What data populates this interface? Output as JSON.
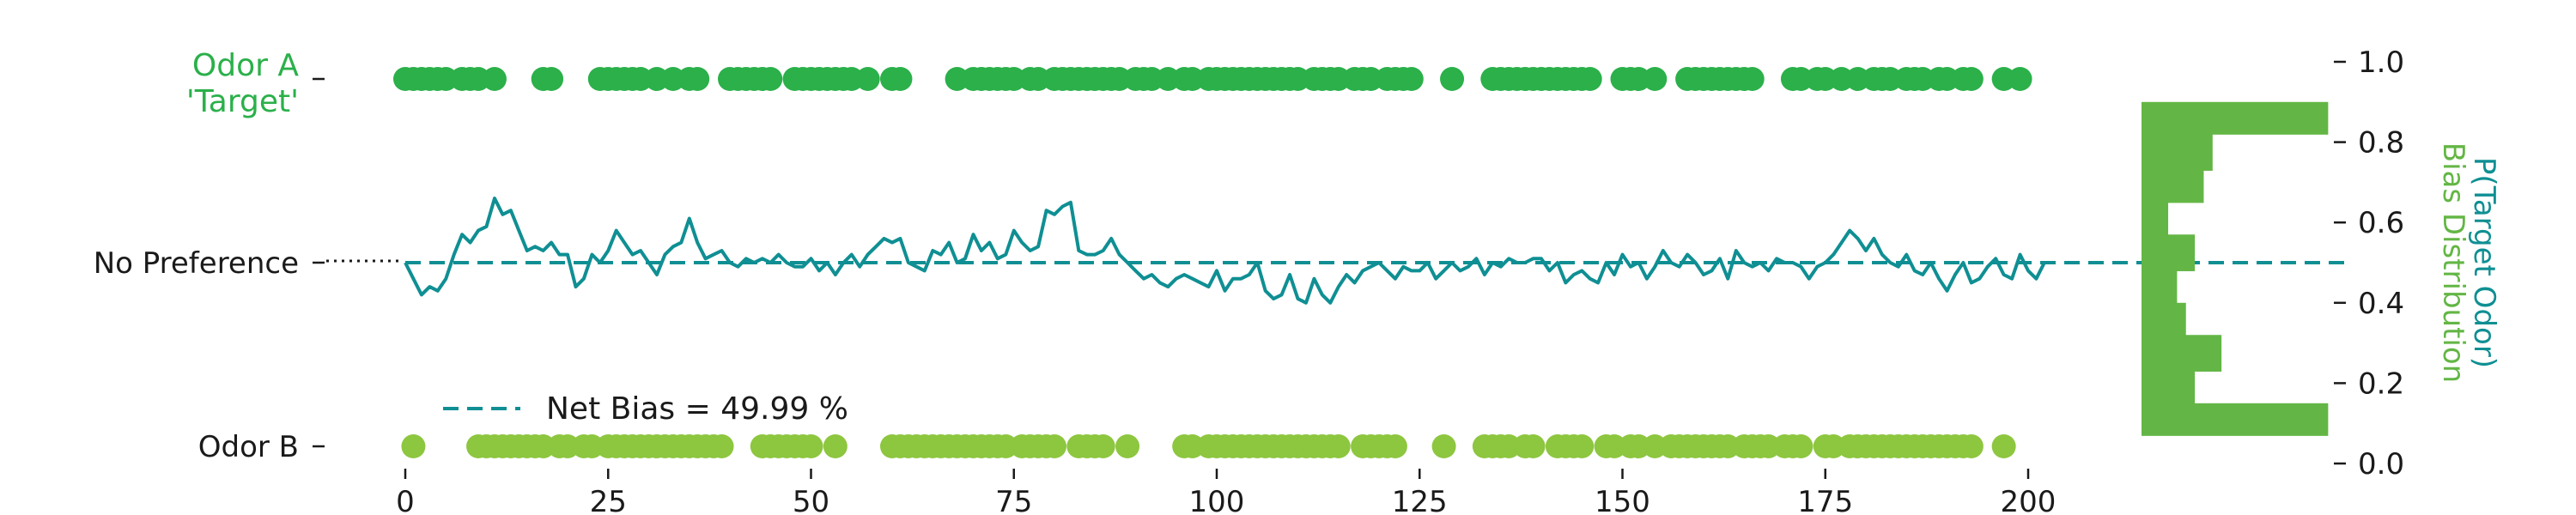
{
  "colors": {
    "odor_a": "#2bb04a",
    "odor_b": "#8dc63f",
    "bias_line": "#0f8f93",
    "histogram": "#63b645",
    "text": "#1a1a1a"
  },
  "labels": {
    "odor_a_line1": "Odor A",
    "odor_a_line2": "'Target'",
    "no_preference": "No Preference",
    "odor_b": "Odor B",
    "legend": "Net Bias = 49.99 %",
    "right_axis_title_1": "P(Target Odor)",
    "right_axis_title_2": "Bias Distribution"
  },
  "chart_data": [
    {
      "type": "scatter",
      "xlim": [
        0,
        200
      ],
      "xticks": [
        "0",
        "25",
        "50",
        "75",
        "100",
        "125",
        "150",
        "175",
        "200"
      ],
      "yticks": [
        "Odor A\n'Target'",
        "No Preference",
        "Odor B"
      ],
      "net_bias_percent": 49.99,
      "no_preference_level": 0.5,
      "series": [
        {
          "name": "Odor A 'Target'",
          "x": [
            0,
            1,
            2,
            3,
            4,
            5,
            7,
            8,
            9,
            11,
            17,
            18,
            24,
            25,
            26,
            27,
            28,
            29,
            31,
            33,
            35,
            36,
            40,
            41,
            42,
            43,
            44,
            45,
            48,
            49,
            50,
            51,
            52,
            53,
            54,
            55,
            57,
            60,
            61,
            68,
            70,
            71,
            72,
            73,
            74,
            75,
            77,
            78,
            80,
            81,
            82,
            83,
            84,
            85,
            86,
            87,
            88,
            90,
            91,
            92,
            94,
            96,
            97,
            99,
            100,
            101,
            102,
            103,
            104,
            105,
            106,
            107,
            108,
            109,
            110,
            112,
            113,
            114,
            115,
            117,
            118,
            119,
            121,
            122,
            123,
            124,
            129,
            134,
            135,
            136,
            137,
            138,
            139,
            140,
            141,
            142,
            143,
            144,
            145,
            146,
            150,
            151,
            152,
            154,
            158,
            159,
            160,
            161,
            162,
            163,
            164,
            165,
            166,
            171,
            172,
            174,
            175,
            177,
            179,
            181,
            182,
            183,
            185,
            186,
            187,
            189,
            190,
            192,
            193,
            197,
            199
          ]
        },
        {
          "name": "Odor B",
          "x": [
            1,
            9,
            10,
            11,
            12,
            13,
            14,
            15,
            16,
            17,
            19,
            20,
            22,
            23,
            25,
            26,
            27,
            28,
            29,
            30,
            31,
            32,
            33,
            34,
            35,
            36,
            37,
            38,
            39,
            44,
            45,
            46,
            47,
            48,
            49,
            50,
            53,
            60,
            61,
            62,
            63,
            64,
            65,
            66,
            67,
            68,
            69,
            70,
            71,
            72,
            73,
            74,
            76,
            77,
            78,
            79,
            80,
            83,
            84,
            85,
            86,
            89,
            96,
            97,
            99,
            100,
            101,
            102,
            103,
            104,
            105,
            106,
            107,
            108,
            109,
            110,
            111,
            112,
            113,
            114,
            115,
            118,
            119,
            120,
            121,
            122,
            128,
            133,
            134,
            135,
            136,
            138,
            139,
            142,
            143,
            144,
            145,
            148,
            149,
            151,
            152,
            154,
            156,
            157,
            158,
            159,
            160,
            161,
            162,
            163,
            165,
            166,
            167,
            168,
            170,
            171,
            172,
            175,
            176,
            178,
            179,
            180,
            181,
            182,
            183,
            184,
            185,
            186,
            187,
            188,
            189,
            190,
            191,
            192,
            193,
            197
          ]
        },
        {
          "name": "P(Target Odor)",
          "type": "line",
          "ylim": [
            0,
            1
          ],
          "x_start": 0,
          "values": [
            0.5,
            0.46,
            0.42,
            0.44,
            0.43,
            0.46,
            0.52,
            0.57,
            0.55,
            0.58,
            0.59,
            0.66,
            0.62,
            0.63,
            0.58,
            0.53,
            0.54,
            0.53,
            0.55,
            0.52,
            0.52,
            0.44,
            0.46,
            0.52,
            0.5,
            0.53,
            0.58,
            0.55,
            0.52,
            0.53,
            0.5,
            0.47,
            0.52,
            0.54,
            0.55,
            0.61,
            0.55,
            0.51,
            0.52,
            0.53,
            0.5,
            0.49,
            0.51,
            0.5,
            0.51,
            0.5,
            0.52,
            0.5,
            0.49,
            0.49,
            0.51,
            0.48,
            0.5,
            0.47,
            0.5,
            0.52,
            0.49,
            0.52,
            0.54,
            0.56,
            0.55,
            0.56,
            0.5,
            0.49,
            0.48,
            0.53,
            0.52,
            0.55,
            0.5,
            0.51,
            0.57,
            0.53,
            0.55,
            0.51,
            0.52,
            0.58,
            0.55,
            0.53,
            0.54,
            0.63,
            0.62,
            0.64,
            0.65,
            0.53,
            0.52,
            0.52,
            0.53,
            0.56,
            0.52,
            0.5,
            0.48,
            0.46,
            0.47,
            0.45,
            0.44,
            0.46,
            0.47,
            0.46,
            0.45,
            0.44,
            0.48,
            0.43,
            0.46,
            0.46,
            0.47,
            0.5,
            0.43,
            0.41,
            0.42,
            0.47,
            0.41,
            0.4,
            0.46,
            0.42,
            0.4,
            0.44,
            0.47,
            0.45,
            0.48,
            0.49,
            0.5,
            0.48,
            0.46,
            0.49,
            0.48,
            0.48,
            0.5,
            0.46,
            0.48,
            0.5,
            0.48,
            0.49,
            0.51,
            0.47,
            0.5,
            0.49,
            0.51,
            0.5,
            0.5,
            0.51,
            0.51,
            0.48,
            0.5,
            0.45,
            0.47,
            0.48,
            0.46,
            0.45,
            0.5,
            0.47,
            0.52,
            0.49,
            0.5,
            0.46,
            0.49,
            0.53,
            0.5,
            0.49,
            0.52,
            0.5,
            0.47,
            0.48,
            0.51,
            0.46,
            0.53,
            0.5,
            0.49,
            0.5,
            0.48,
            0.51,
            0.5,
            0.5,
            0.49,
            0.46,
            0.49,
            0.5,
            0.52,
            0.55,
            0.58,
            0.56,
            0.53,
            0.56,
            0.52,
            0.5,
            0.49,
            0.52,
            0.48,
            0.47,
            0.5,
            0.46,
            0.43,
            0.47,
            0.5,
            0.45,
            0.46,
            0.49,
            0.51,
            0.47,
            0.46,
            0.52,
            0.48,
            0.46,
            0.5
          ]
        }
      ]
    },
    {
      "type": "bar",
      "orientation": "horizontal",
      "title": "Bias Distribution",
      "ylim": [
        0,
        1
      ],
      "yticks": [
        "0.0",
        "0.2",
        "0.4",
        "0.6",
        "0.8",
        "1.0"
      ],
      "bins": [
        [
          0.07,
          0.15
        ],
        [
          0.15,
          0.23
        ],
        [
          0.23,
          0.32
        ],
        [
          0.32,
          0.4
        ],
        [
          0.4,
          0.48
        ],
        [
          0.48,
          0.57
        ],
        [
          0.57,
          0.65
        ],
        [
          0.65,
          0.73
        ],
        [
          0.73,
          0.82
        ],
        [
          0.82,
          0.9
        ]
      ],
      "values": [
        21,
        6,
        9,
        5,
        4,
        6,
        3,
        7,
        8,
        21
      ]
    }
  ]
}
